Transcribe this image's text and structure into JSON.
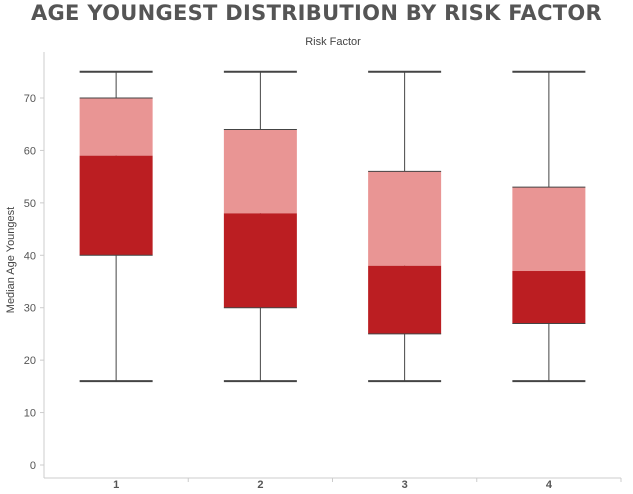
{
  "title": "AGE YOUNGEST DISTRIBUTION BY RISK FACTOR",
  "chart_data": {
    "type": "box",
    "header": "Risk Factor",
    "ylabel": "Median Age Youngest",
    "ylim": [
      0,
      75
    ],
    "yticks": [
      0,
      10,
      20,
      30,
      40,
      50,
      60,
      70
    ],
    "categories": [
      "1",
      "2",
      "3",
      "4"
    ],
    "boxes": [
      {
        "category": "1",
        "whisker_low": 16,
        "q1": 40,
        "median": 59,
        "q3": 70,
        "whisker_high": 75
      },
      {
        "category": "2",
        "whisker_low": 16,
        "q1": 30,
        "median": 48,
        "q3": 64,
        "whisker_high": 75
      },
      {
        "category": "3",
        "whisker_low": 16,
        "q1": 25,
        "median": 38,
        "q3": 56,
        "whisker_high": 75
      },
      {
        "category": "4",
        "whisker_low": 16,
        "q1": 27,
        "median": 37,
        "q3": 53,
        "whisker_high": 75
      }
    ],
    "colors": {
      "lower_box": "#bb1e22",
      "upper_box": "#e99594",
      "whisker": "#444444",
      "axis": "#cccccc"
    },
    "grid": false,
    "legend": "none"
  }
}
